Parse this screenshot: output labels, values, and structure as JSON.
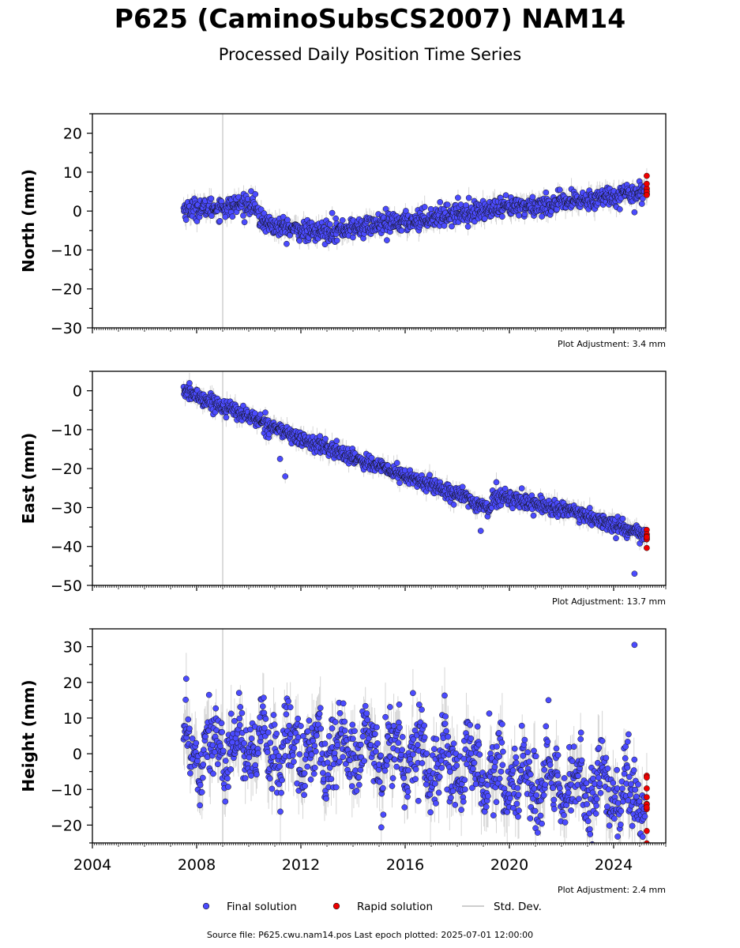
{
  "header": {
    "title": "P625 (CaminoSubsCS2007) NAM14",
    "subtitle": "Processed Daily Position Time Series"
  },
  "footer": {
    "source": "Source file: P625.cwu.nam14.pos  Last epoch plotted: 2025-07-01 12:00:00"
  },
  "legend": {
    "final": "Final solution",
    "rapid": "Rapid solution",
    "std": "Std. Dev."
  },
  "colors": {
    "final": "#4b4bff",
    "rapid": "#ee0000",
    "std": "#bdbdbd",
    "marker_edge": "#111111"
  },
  "chart_data": [
    {
      "type": "scatter",
      "ylabel": "North (mm)",
      "xlim": [
        2004,
        2026
      ],
      "ylim": [
        -30,
        25
      ],
      "yticks": [
        -30,
        -20,
        -10,
        0,
        10,
        20
      ],
      "yminor_step": 5,
      "xticks": [
        2004,
        2008,
        2012,
        2016,
        2020,
        2024
      ],
      "show_xtick_labels": false,
      "adjustment": "Plot Adjustment: 3.4 mm",
      "final_start": 2007.5,
      "final_end": 2025.2,
      "rapid_start": 2025.25,
      "rapid_end": 2025.5,
      "trend": [
        [
          2007.5,
          0.5
        ],
        [
          2009.0,
          1.0
        ],
        [
          2010.2,
          2.0
        ],
        [
          2010.4,
          -2.0
        ],
        [
          2011.0,
          -4.0
        ],
        [
          2012.5,
          -5.5
        ],
        [
          2013.5,
          -4.8
        ],
        [
          2015.0,
          -3.5
        ],
        [
          2016.0,
          -2.8
        ],
        [
          2018.0,
          -0.5
        ],
        [
          2020.0,
          0.8
        ],
        [
          2022.0,
          2.0
        ],
        [
          2024.0,
          4.0
        ],
        [
          2025.5,
          5.5
        ]
      ],
      "noise": 1.3,
      "error": 2.2,
      "outliers": [
        [
          2024.8,
          -0.3
        ],
        [
          2009.1,
          -1.5
        ],
        [
          2015.3,
          -7.5
        ],
        [
          2013.2,
          -0.5
        ]
      ],
      "vline": 2009.0,
      "grid": false,
      "legend": "bottom-center"
    },
    {
      "type": "scatter",
      "ylabel": "East (mm)",
      "xlim": [
        2004,
        2026
      ],
      "ylim": [
        -50,
        5
      ],
      "yticks": [
        -50,
        -40,
        -30,
        -20,
        -10,
        0
      ],
      "yminor_step": 5,
      "xticks": [
        2004,
        2008,
        2012,
        2016,
        2020,
        2024
      ],
      "show_xtick_labels": false,
      "adjustment": "Plot Adjustment: 13.7 mm",
      "final_start": 2007.5,
      "final_end": 2025.2,
      "rapid_start": 2025.25,
      "rapid_end": 2025.5,
      "trend": [
        [
          2007.5,
          0.0
        ],
        [
          2009.0,
          -4.0
        ],
        [
          2010.0,
          -6.5
        ],
        [
          2012.0,
          -12.5
        ],
        [
          2014.0,
          -17.0
        ],
        [
          2016.0,
          -22.0
        ],
        [
          2018.0,
          -26.5
        ],
        [
          2019.2,
          -30.5
        ],
        [
          2019.4,
          -27.5
        ],
        [
          2020.0,
          -27.5
        ],
        [
          2022.0,
          -30.5
        ],
        [
          2024.0,
          -34.5
        ],
        [
          2025.5,
          -38.0
        ]
      ],
      "noise": 1.0,
      "error": 2.0,
      "outliers": [
        [
          2024.8,
          -47.0
        ],
        [
          2011.4,
          -22.0
        ],
        [
          2011.2,
          -17.5
        ],
        [
          2019.5,
          -23.5
        ],
        [
          2018.9,
          -36.0
        ]
      ],
      "vline": 2009.0,
      "grid": false
    },
    {
      "type": "scatter",
      "ylabel": "Height (mm)",
      "xlim": [
        2004,
        2026
      ],
      "ylim": [
        -25,
        35
      ],
      "yticks": [
        -20,
        -10,
        0,
        10,
        20,
        30
      ],
      "yminor_step": 5,
      "xticks": [
        2004,
        2008,
        2012,
        2016,
        2020,
        2024
      ],
      "xtick_labels": [
        "2004",
        "2008",
        "2012",
        "2016",
        "2020",
        "2024"
      ],
      "show_xtick_labels": true,
      "adjustment": "Plot Adjustment: 2.4 mm",
      "final_start": 2007.5,
      "final_end": 2025.2,
      "rapid_start": 2025.25,
      "rapid_end": 2025.5,
      "trend": [
        [
          2007.5,
          2.0
        ],
        [
          2016.0,
          0.0
        ],
        [
          2020.0,
          -7.0
        ],
        [
          2025.5,
          -13.0
        ]
      ],
      "seasonal": 5.0,
      "noise": 5.0,
      "error": 7.0,
      "outliers": [
        [
          2024.8,
          30.5
        ],
        [
          2007.6,
          21.0
        ],
        [
          2021.5,
          15.0
        ],
        [
          2016.3,
          17.0
        ]
      ],
      "vline": 2009.0,
      "grid": false
    }
  ]
}
